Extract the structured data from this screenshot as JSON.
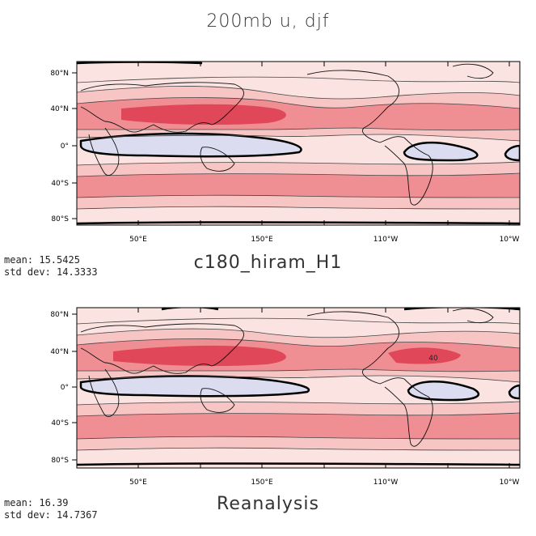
{
  "title": "200mb u, djf",
  "panels": [
    {
      "stats": {
        "mean": "mean: 15.5425",
        "std": "std dev: 14.3333"
      },
      "label": "c180_hiram_H1",
      "lat_ticks": [
        "80°N",
        "40°N",
        "0°",
        "40°S",
        "80°S"
      ],
      "lon_ticks": [
        "50°E",
        "150°E",
        "110°W",
        "10°W"
      ]
    },
    {
      "stats": {
        "mean": "mean: 16.39",
        "std": "std dev: 14.7367"
      },
      "label": "Reanalysis",
      "contour_label": "40",
      "lat_ticks": [
        "80°N",
        "40°N",
        "0°",
        "40°S",
        "80°S"
      ],
      "lon_ticks": [
        "50°E",
        "150°E",
        "110°W",
        "10°W"
      ]
    }
  ],
  "colors": {
    "strong": "#e0485a",
    "mid": "#f08f93",
    "light": "#f7c5c3",
    "pale": "#fbe3e1",
    "negative": "#dcdcf0"
  }
}
